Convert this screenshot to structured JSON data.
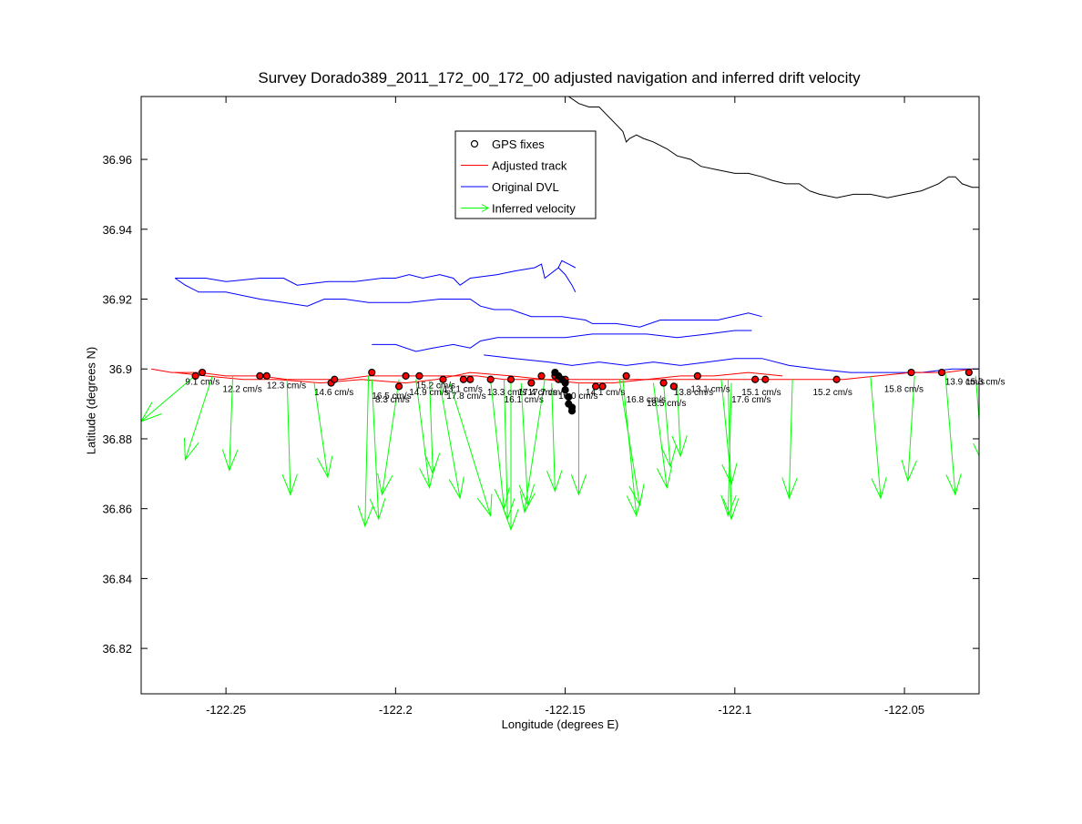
{
  "chart_data": {
    "type": "scatter",
    "title": "Survey Dorado389_2011_172_00_172_00 adjusted navigation and inferred drift velocity",
    "xlabel": "Longitude (degrees E)",
    "ylabel": "Latitude (degrees N)",
    "xlim": [
      -122.275,
      -122.028
    ],
    "ylim": [
      36.807,
      36.978
    ],
    "xticks": [
      -122.25,
      -122.2,
      -122.15,
      -122.1,
      -122.05
    ],
    "xtick_labels": [
      "-122.25",
      "-122.2",
      "-122.15",
      "-122.1",
      "-122.05"
    ],
    "yticks": [
      36.82,
      36.84,
      36.86,
      36.88,
      36.9,
      36.92,
      36.94,
      36.96
    ],
    "ytick_labels": [
      "36.82",
      "36.84",
      "36.86",
      "36.88",
      "36.9",
      "36.92",
      "36.94",
      "36.96"
    ],
    "grid": false,
    "legend_position": "top-center",
    "legend": [
      {
        "label": "GPS fixes",
        "kind": "marker",
        "color": "#000000"
      },
      {
        "label": "Adjusted track",
        "kind": "line",
        "color": "#ff0000"
      },
      {
        "label": "Original DVL",
        "kind": "line",
        "color": "#0000ff"
      },
      {
        "label": "Inferred velocity",
        "kind": "arrow",
        "color": "#00ff00"
      }
    ],
    "colors": {
      "gps": "#000000",
      "adjusted": "#ff0000",
      "dvl": "#0000ff",
      "velocity": "#00ff00",
      "coastline": "#000000"
    },
    "coastline": [
      [
        -122.149,
        36.978
      ],
      [
        -122.146,
        36.976
      ],
      [
        -122.143,
        36.975
      ],
      [
        -122.14,
        36.975
      ],
      [
        -122.138,
        36.973
      ],
      [
        -122.135,
        36.97
      ],
      [
        -122.133,
        36.968
      ],
      [
        -122.132,
        36.965
      ],
      [
        -122.131,
        36.966
      ],
      [
        -122.129,
        36.967
      ],
      [
        -122.127,
        36.966
      ],
      [
        -122.124,
        36.965
      ],
      [
        -122.12,
        36.963
      ],
      [
        -122.117,
        36.961
      ],
      [
        -122.113,
        36.96
      ],
      [
        -122.11,
        36.958
      ],
      [
        -122.105,
        36.957
      ],
      [
        -122.1,
        36.956
      ],
      [
        -122.096,
        36.956
      ],
      [
        -122.092,
        36.955
      ],
      [
        -122.089,
        36.954
      ],
      [
        -122.085,
        36.953
      ],
      [
        -122.081,
        36.953
      ],
      [
        -122.078,
        36.951
      ],
      [
        -122.075,
        36.95
      ],
      [
        -122.07,
        36.949
      ],
      [
        -122.065,
        36.95
      ],
      [
        -122.06,
        36.95
      ],
      [
        -122.055,
        36.949
      ],
      [
        -122.05,
        36.95
      ],
      [
        -122.045,
        36.951
      ],
      [
        -122.04,
        36.953
      ],
      [
        -122.037,
        36.955
      ],
      [
        -122.035,
        36.955
      ],
      [
        -122.033,
        36.953
      ],
      [
        -122.03,
        36.952
      ],
      [
        -122.028,
        36.952
      ]
    ],
    "dvl_tracks": [
      [
        [
          -122.265,
          36.926
        ],
        [
          -122.256,
          36.926
        ],
        [
          -122.25,
          36.925
        ],
        [
          -122.24,
          36.926
        ],
        [
          -122.233,
          36.926
        ],
        [
          -122.229,
          36.924
        ],
        [
          -122.22,
          36.925
        ],
        [
          -122.212,
          36.925
        ],
        [
          -122.204,
          36.926
        ],
        [
          -122.2,
          36.926
        ],
        [
          -122.196,
          36.927
        ],
        [
          -122.192,
          36.926
        ],
        [
          -122.187,
          36.927
        ],
        [
          -122.183,
          36.926
        ],
        [
          -122.181,
          36.924
        ],
        [
          -122.178,
          36.926
        ],
        [
          -122.17,
          36.927
        ],
        [
          -122.165,
          36.928
        ],
        [
          -122.159,
          36.929
        ],
        [
          -122.157,
          36.93
        ],
        [
          -122.156,
          36.926
        ],
        [
          -122.152,
          36.929
        ],
        [
          -122.151,
          36.931
        ],
        [
          -122.149,
          36.93
        ],
        [
          -122.147,
          36.929
        ]
      ],
      [
        [
          -122.265,
          36.926
        ],
        [
          -122.262,
          36.924
        ],
        [
          -122.258,
          36.922
        ],
        [
          -122.25,
          36.922
        ],
        [
          -122.24,
          36.92
        ],
        [
          -122.233,
          36.919
        ],
        [
          -122.226,
          36.918
        ],
        [
          -122.221,
          36.92
        ],
        [
          -122.215,
          36.92
        ],
        [
          -122.208,
          36.919
        ],
        [
          -122.201,
          36.919
        ],
        [
          -122.196,
          36.919
        ],
        [
          -122.187,
          36.92
        ],
        [
          -122.178,
          36.92
        ],
        [
          -122.175,
          36.918
        ],
        [
          -122.171,
          36.917
        ],
        [
          -122.166,
          36.917
        ],
        [
          -122.16,
          36.915
        ],
        [
          -122.151,
          36.915
        ],
        [
          -122.144,
          36.914
        ],
        [
          -122.142,
          36.913
        ],
        [
          -122.135,
          36.913
        ],
        [
          -122.128,
          36.912
        ],
        [
          -122.122,
          36.914
        ],
        [
          -122.114,
          36.914
        ],
        [
          -122.105,
          36.914
        ],
        [
          -122.096,
          36.916
        ],
        [
          -122.092,
          36.915
        ]
      ],
      [
        [
          -122.152,
          36.929
        ],
        [
          -122.15,
          36.927
        ],
        [
          -122.148,
          36.924
        ],
        [
          -122.147,
          36.922
        ]
      ],
      [
        [
          -122.207,
          36.907
        ],
        [
          -122.2,
          36.907
        ],
        [
          -122.194,
          36.905
        ],
        [
          -122.189,
          36.906
        ],
        [
          -122.183,
          36.907
        ],
        [
          -122.178,
          36.906
        ],
        [
          -122.175,
          36.908
        ],
        [
          -122.17,
          36.909
        ],
        [
          -122.16,
          36.909
        ],
        [
          -122.15,
          36.909
        ],
        [
          -122.142,
          36.91
        ],
        [
          -122.135,
          36.91
        ],
        [
          -122.126,
          36.91
        ],
        [
          -122.117,
          36.909
        ],
        [
          -122.108,
          36.91
        ],
        [
          -122.1,
          36.911
        ],
        [
          -122.095,
          36.911
        ]
      ],
      [
        [
          -122.174,
          36.904
        ],
        [
          -122.165,
          36.903
        ],
        [
          -122.155,
          36.902
        ],
        [
          -122.148,
          36.901
        ],
        [
          -122.14,
          36.902
        ],
        [
          -122.132,
          36.901
        ],
        [
          -122.124,
          36.902
        ],
        [
          -122.116,
          36.901
        ],
        [
          -122.108,
          36.902
        ],
        [
          -122.1,
          36.903
        ],
        [
          -122.092,
          36.903
        ],
        [
          -122.084,
          36.901
        ],
        [
          -122.076,
          36.9
        ],
        [
          -122.066,
          36.899
        ],
        [
          -122.054,
          36.899
        ],
        [
          -122.045,
          36.899
        ],
        [
          -122.036,
          36.9
        ],
        [
          -122.028,
          36.9
        ]
      ]
    ],
    "adjusted_track": [
      [
        -122.272,
        36.9
      ],
      [
        -122.266,
        36.899
      ],
      [
        -122.258,
        36.899
      ],
      [
        -122.25,
        36.898
      ],
      [
        -122.24,
        36.898
      ],
      [
        -122.232,
        36.897
      ],
      [
        -122.224,
        36.897
      ],
      [
        -122.216,
        36.897
      ],
      [
        -122.208,
        36.898
      ],
      [
        -122.2,
        36.898
      ],
      [
        -122.192,
        36.898
      ],
      [
        -122.184,
        36.898
      ],
      [
        -122.176,
        36.898
      ],
      [
        -122.168,
        36.897
      ],
      [
        -122.16,
        36.897
      ],
      [
        -122.152,
        36.897
      ],
      [
        -122.144,
        36.897
      ],
      [
        -122.136,
        36.897
      ],
      [
        -122.128,
        36.897
      ],
      [
        -122.12,
        36.897
      ],
      [
        -122.112,
        36.897
      ],
      [
        -122.104,
        36.897
      ],
      [
        -122.096,
        36.897
      ],
      [
        -122.088,
        36.897
      ],
      [
        -122.08,
        36.897
      ],
      [
        -122.068,
        36.897
      ],
      [
        -122.058,
        36.898
      ],
      [
        -122.048,
        36.899
      ],
      [
        -122.038,
        36.899
      ],
      [
        -122.03,
        36.9
      ]
    ],
    "adjusted_track_2": [
      [
        -122.265,
        36.899
      ],
      [
        -122.256,
        36.898
      ],
      [
        -122.245,
        36.897
      ],
      [
        -122.235,
        36.897
      ],
      [
        -122.222,
        36.896
      ],
      [
        -122.21,
        36.897
      ],
      [
        -122.197,
        36.896
      ],
      [
        -122.188,
        36.897
      ],
      [
        -122.178,
        36.899
      ],
      [
        -122.166,
        36.898
      ],
      [
        -122.156,
        36.897
      ],
      [
        -122.146,
        36.896
      ],
      [
        -122.136,
        36.896
      ],
      [
        -122.126,
        36.897
      ],
      [
        -122.116,
        36.898
      ],
      [
        -122.106,
        36.898
      ],
      [
        -122.096,
        36.899
      ],
      [
        -122.086,
        36.898
      ]
    ],
    "gps_fixes": [
      [
        -122.259,
        36.898
      ],
      [
        -122.257,
        36.899
      ],
      [
        -122.24,
        36.898
      ],
      [
        -122.238,
        36.898
      ],
      [
        -122.219,
        36.896
      ],
      [
        -122.218,
        36.897
      ],
      [
        -122.207,
        36.899
      ],
      [
        -122.199,
        36.895
      ],
      [
        -122.197,
        36.898
      ],
      [
        -122.193,
        36.898
      ],
      [
        -122.186,
        36.897
      ],
      [
        -122.18,
        36.897
      ],
      [
        -122.178,
        36.897
      ],
      [
        -122.172,
        36.897
      ],
      [
        -122.166,
        36.897
      ],
      [
        -122.16,
        36.896
      ],
      [
        -122.157,
        36.898
      ],
      [
        -122.153,
        36.898
      ],
      [
        -122.152,
        36.897
      ],
      [
        -122.151,
        36.897
      ],
      [
        -122.15,
        36.897
      ],
      [
        -122.141,
        36.895
      ],
      [
        -122.139,
        36.895
      ],
      [
        -122.132,
        36.898
      ],
      [
        -122.121,
        36.896
      ],
      [
        -122.118,
        36.895
      ],
      [
        -122.111,
        36.898
      ],
      [
        -122.094,
        36.897
      ],
      [
        -122.091,
        36.897
      ],
      [
        -122.07,
        36.897
      ],
      [
        -122.048,
        36.899
      ],
      [
        -122.039,
        36.899
      ],
      [
        -122.031,
        36.899
      ]
    ],
    "gps_cluster": [
      [
        -122.153,
        36.899
      ],
      [
        -122.152,
        36.898
      ],
      [
        -122.151,
        36.897
      ],
      [
        -122.15,
        36.896
      ],
      [
        -122.15,
        36.894
      ],
      [
        -122.149,
        36.892
      ],
      [
        -122.149,
        36.89
      ],
      [
        -122.148,
        36.889
      ],
      [
        -122.148,
        36.888
      ]
    ],
    "speed_labels": [
      {
        "x": -122.262,
        "y": 36.897,
        "text": "9.1 cm/s"
      },
      {
        "x": -122.238,
        "y": 36.896,
        "text": "12.3 cm/s"
      },
      {
        "x": -122.251,
        "y": 36.895,
        "text": "12.2 cm/s"
      },
      {
        "x": -122.224,
        "y": 36.894,
        "text": "14.6 cm/s"
      },
      {
        "x": -122.207,
        "y": 36.893,
        "text": "16.5 cm/s"
      },
      {
        "x": -122.206,
        "y": 36.892,
        "text": "8.3 cm/s"
      },
      {
        "x": -122.194,
        "y": 36.896,
        "text": "15.2 cm/s"
      },
      {
        "x": -122.196,
        "y": 36.894,
        "text": "14.9 cm/s"
      },
      {
        "x": -122.186,
        "y": 36.895,
        "text": "13.1 cm/s"
      },
      {
        "x": -122.185,
        "y": 36.893,
        "text": "17.8 cm/s"
      },
      {
        "x": -122.173,
        "y": 36.894,
        "text": "13.3 cm/s"
      },
      {
        "x": -122.164,
        "y": 36.894,
        "text": "17.4 cm/s"
      },
      {
        "x": -122.168,
        "y": 36.892,
        "text": "16.1 cm/s"
      },
      {
        "x": -122.161,
        "y": 36.894,
        "text": "17.7 cm/s"
      },
      {
        "x": -122.152,
        "y": 36.893,
        "text": "16.0 cm/s"
      },
      {
        "x": -122.144,
        "y": 36.894,
        "text": "14.1 cm/s"
      },
      {
        "x": -122.132,
        "y": 36.892,
        "text": "16.8 cm/s"
      },
      {
        "x": -122.126,
        "y": 36.891,
        "text": "18.5 cm/s"
      },
      {
        "x": -122.118,
        "y": 36.894,
        "text": "13.8 cm/s"
      },
      {
        "x": -122.113,
        "y": 36.895,
        "text": "13.1 cm/s"
      },
      {
        "x": -122.098,
        "y": 36.894,
        "text": "15.1 cm/s"
      },
      {
        "x": -122.101,
        "y": 36.892,
        "text": "17.6 cm/s"
      },
      {
        "x": -122.077,
        "y": 36.894,
        "text": "15.2 cm/s"
      },
      {
        "x": -122.056,
        "y": 36.895,
        "text": "15.8 cm/s"
      },
      {
        "x": -122.038,
        "y": 36.897,
        "text": "13.9 cm/s"
      },
      {
        "x": -122.032,
        "y": 36.897,
        "text": "15.6 cm/s"
      }
    ],
    "velocity_arrows": [
      {
        "x": -122.258,
        "y": 36.899,
        "dx": -0.017,
        "dy": -0.014
      },
      {
        "x": -122.254,
        "y": 36.898,
        "dx": -0.008,
        "dy": -0.024
      },
      {
        "x": -122.248,
        "y": 36.898,
        "dx": -0.001,
        "dy": -0.027
      },
      {
        "x": -122.232,
        "y": 36.897,
        "dx": 0.001,
        "dy": -0.033
      },
      {
        "x": -122.224,
        "y": 36.896,
        "dx": 0.004,
        "dy": -0.027
      },
      {
        "x": -122.208,
        "y": 36.898,
        "dx": -0.001,
        "dy": -0.043
      },
      {
        "x": -122.207,
        "y": 36.897,
        "dx": 0.002,
        "dy": -0.04
      },
      {
        "x": -122.199,
        "y": 36.897,
        "dx": -0.005,
        "dy": -0.033
      },
      {
        "x": -122.194,
        "y": 36.897,
        "dx": 0.004,
        "dy": -0.031
      },
      {
        "x": -122.19,
        "y": 36.897,
        "dx": 0.001,
        "dy": -0.027
      },
      {
        "x": -122.187,
        "y": 36.896,
        "dx": 0.006,
        "dy": -0.033
      },
      {
        "x": -122.184,
        "y": 36.896,
        "dx": 0.012,
        "dy": -0.038
      },
      {
        "x": -122.172,
        "y": 36.897,
        "dx": 0.004,
        "dy": -0.037
      },
      {
        "x": -122.168,
        "y": 36.897,
        "dx": 0.001,
        "dy": -0.04
      },
      {
        "x": -122.166,
        "y": 36.896,
        "dx": 0.0,
        "dy": -0.042
      },
      {
        "x": -122.163,
        "y": 36.896,
        "dx": 0.002,
        "dy": -0.035
      },
      {
        "x": -122.156,
        "y": 36.897,
        "dx": -0.006,
        "dy": -0.038
      },
      {
        "x": -122.154,
        "y": 36.896,
        "dx": 0.001,
        "dy": -0.031
      },
      {
        "x": -122.146,
        "y": 36.896,
        "dx": 0.0,
        "dy": -0.032
      },
      {
        "x": -122.134,
        "y": 36.897,
        "dx": 0.006,
        "dy": -0.036
      },
      {
        "x": -122.133,
        "y": 36.897,
        "dx": 0.004,
        "dy": -0.039
      },
      {
        "x": -122.124,
        "y": 36.896,
        "dx": 0.004,
        "dy": -0.03
      },
      {
        "x": -122.121,
        "y": 36.896,
        "dx": 0.002,
        "dy": -0.024
      },
      {
        "x": -122.117,
        "y": 36.896,
        "dx": 0.001,
        "dy": -0.021
      },
      {
        "x": -122.104,
        "y": 36.897,
        "dx": 0.003,
        "dy": -0.03
      },
      {
        "x": -122.102,
        "y": 36.897,
        "dx": 0.001,
        "dy": -0.04
      },
      {
        "x": -122.101,
        "y": 36.896,
        "dx": -0.001,
        "dy": -0.038
      },
      {
        "x": -122.083,
        "y": 36.897,
        "dx": -0.001,
        "dy": -0.034
      },
      {
        "x": -122.06,
        "y": 36.898,
        "dx": 0.003,
        "dy": -0.035
      },
      {
        "x": -122.047,
        "y": 36.898,
        "dx": -0.002,
        "dy": -0.03
      },
      {
        "x": -122.038,
        "y": 36.899,
        "dx": 0.003,
        "dy": -0.035
      },
      {
        "x": -122.029,
        "y": 36.898,
        "dx": 0.002,
        "dy": -0.025
      }
    ]
  }
}
